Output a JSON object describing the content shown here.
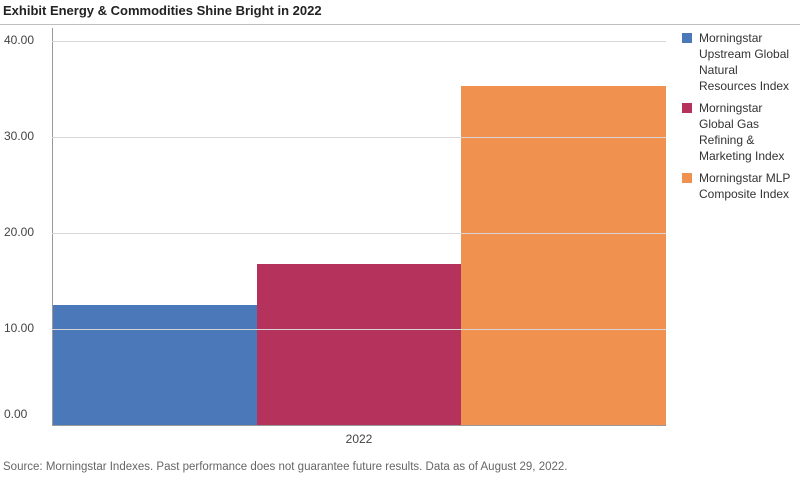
{
  "chart_data": {
    "type": "bar",
    "title": "Exhibit Energy & Commodities Shine Bright in 2022",
    "categories": [
      "2022"
    ],
    "series": [
      {
        "name": "Morningstar Upstream Global Natural Resources Index",
        "color": "#4a78b8",
        "values": [
          12.5
        ]
      },
      {
        "name": "Morningstar Global Gas Refining & Marketing Index",
        "color": "#b5325c",
        "values": [
          16.8
        ]
      },
      {
        "name": "Morningstar MLP Composite Index",
        "color": "#f0914f",
        "values": [
          35.3
        ]
      }
    ],
    "yticks": [
      "0.00",
      "10.00",
      "20.00",
      "30.00",
      "40.00"
    ],
    "ylim": [
      0,
      40
    ],
    "xlabel": "",
    "ylabel": "",
    "legend": "right",
    "grid": true
  },
  "source": "Source: Morningstar Indexes. Past performance does not guarantee future results.  Data as of August 29, 2022."
}
